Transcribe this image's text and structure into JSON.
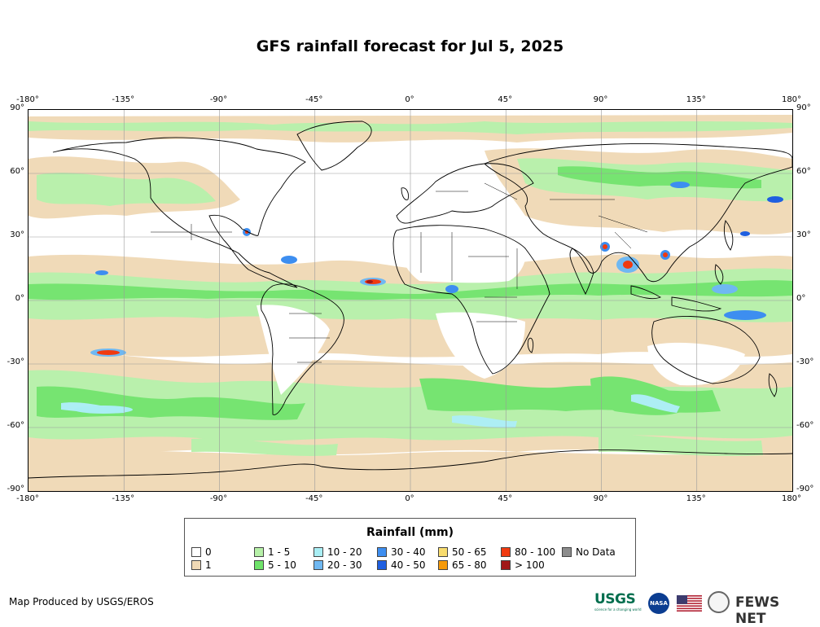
{
  "title": "GFS rainfall forecast for Jul 5, 2025",
  "axes": {
    "lon_labels": [
      "-180°",
      "-135°",
      "-90°",
      "-45°",
      "0°",
      "45°",
      "90°",
      "135°",
      "180°"
    ],
    "lat_labels": [
      "90°",
      "60°",
      "30°",
      "0°",
      "-30°",
      "-60°",
      "-90°"
    ]
  },
  "map": {
    "extent_lon": [
      -180,
      180
    ],
    "extent_lat": [
      -90,
      90
    ],
    "graticule_step_deg": 45,
    "graticule_lat_step_deg": 30
  },
  "legend": {
    "title": "Rainfall (mm)",
    "items": [
      {
        "label": "0",
        "color": "#ffffff"
      },
      {
        "label": "1",
        "color": "#f0d9b5"
      },
      {
        "label": "1 - 5",
        "color": "#b6f0a8"
      },
      {
        "label": "5 - 10",
        "color": "#6fe36a"
      },
      {
        "label": "10 - 20",
        "color": "#a9eef4"
      },
      {
        "label": "20 - 30",
        "color": "#6fb8f2"
      },
      {
        "label": "30 - 40",
        "color": "#3d8ef0"
      },
      {
        "label": "40 - 50",
        "color": "#1f5fe0"
      },
      {
        "label": "50 - 65",
        "color": "#f8dc6e"
      },
      {
        "label": "65 - 80",
        "color": "#f59a0a"
      },
      {
        "label": "80 - 100",
        "color": "#f03a10"
      },
      {
        "label": "> 100",
        "color": "#a01818"
      },
      {
        "label": "No Data",
        "color": "#8c8c8c"
      }
    ]
  },
  "credit": "Map Produced by USGS/EROS",
  "logos": {
    "usgs": "USGS",
    "usgs_tagline": "science for a changing world",
    "nasa": "NASA",
    "fews": "FEWS NET"
  }
}
